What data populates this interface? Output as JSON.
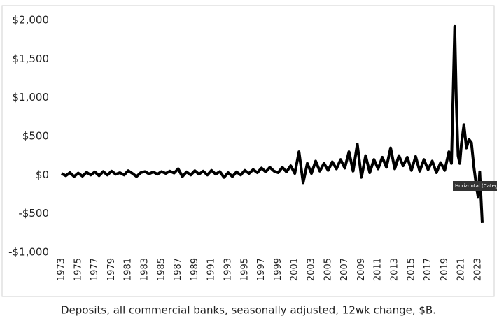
{
  "chart_data": {
    "type": "line",
    "caption": "Deposits, all commercial banks, seasonally adjusted, 12wk change, $B.",
    "annotation": "Horizontal (Category",
    "color": "#000000",
    "x": [
      1973,
      1973.5,
      1974,
      1974.5,
      1975,
      1975.5,
      1976,
      1976.5,
      1977,
      1977.5,
      1978,
      1978.5,
      1979,
      1979.5,
      1980,
      1980.5,
      1981,
      1981.5,
      1982,
      1982.5,
      1983,
      1983.5,
      1984,
      1984.5,
      1985,
      1985.5,
      1986,
      1986.5,
      1987,
      1987.5,
      1988,
      1988.5,
      1989,
      1989.5,
      1990,
      1990.5,
      1991,
      1991.5,
      1992,
      1992.5,
      1993,
      1993.5,
      1994,
      1994.5,
      1995,
      1995.5,
      1996,
      1996.5,
      1997,
      1997.5,
      1998,
      1998.5,
      1999,
      1999.5,
      2000,
      2000.5,
      2001,
      2001.5,
      2002,
      2002.5,
      2003,
      2003.5,
      2004,
      2004.5,
      2005,
      2005.5,
      2006,
      2006.5,
      2007,
      2007.5,
      2008,
      2008.5,
      2009,
      2009.5,
      2010,
      2010.5,
      2011,
      2011.5,
      2012,
      2012.5,
      2013,
      2013.5,
      2014,
      2014.5,
      2015,
      2015.5,
      2016,
      2016.5,
      2017,
      2017.5,
      2018,
      2018.5,
      2019,
      2019.5,
      2019.8,
      2020.2,
      2020.4,
      2020.6,
      2020.8,
      2021,
      2021.3,
      2021.6,
      2021.9,
      2022.2,
      2022.5,
      2022.8,
      2023,
      2023.2,
      2023.5
    ],
    "values": [
      20,
      -10,
      30,
      -20,
      25,
      -15,
      35,
      0,
      40,
      -10,
      45,
      0,
      50,
      10,
      30,
      0,
      55,
      20,
      -20,
      30,
      45,
      15,
      40,
      10,
      45,
      20,
      50,
      25,
      80,
      -20,
      40,
      0,
      55,
      10,
      50,
      0,
      60,
      10,
      45,
      -30,
      30,
      -20,
      40,
      0,
      60,
      20,
      70,
      30,
      90,
      40,
      100,
      50,
      30,
      100,
      40,
      120,
      20,
      300,
      -100,
      150,
      20,
      180,
      50,
      150,
      60,
      170,
      80,
      200,
      90,
      300,
      50,
      400,
      -30,
      250,
      30,
      200,
      80,
      230,
      100,
      350,
      80,
      250,
      120,
      230,
      60,
      240,
      50,
      200,
      70,
      180,
      30,
      160,
      60,
      300,
      150,
      1920,
      900,
      250,
      150,
      400,
      650,
      350,
      460,
      420,
      100,
      -150,
      -280,
      40,
      -620
    ],
    "xlim": [
      1973,
      2023.5
    ],
    "xticks": [
      1973,
      1975,
      1977,
      1979,
      1981,
      1983,
      1985,
      1987,
      1989,
      1991,
      1993,
      1995,
      1997,
      1999,
      2001,
      2003,
      2005,
      2007,
      2009,
      2011,
      2013,
      2015,
      2017,
      2019,
      2021,
      2023
    ],
    "ylim": [
      -1000,
      2000
    ],
    "yticks": [
      {
        "value": -1000,
        "label": "-$1,000"
      },
      {
        "value": -500,
        "label": "-$500"
      },
      {
        "value": 0,
        "label": "$0"
      },
      {
        "value": 500,
        "label": "$500"
      },
      {
        "value": 1000,
        "label": "$1,000"
      },
      {
        "value": 1500,
        "label": "$1,500"
      },
      {
        "value": 2000,
        "label": "$2,000"
      }
    ],
    "grid": false
  }
}
